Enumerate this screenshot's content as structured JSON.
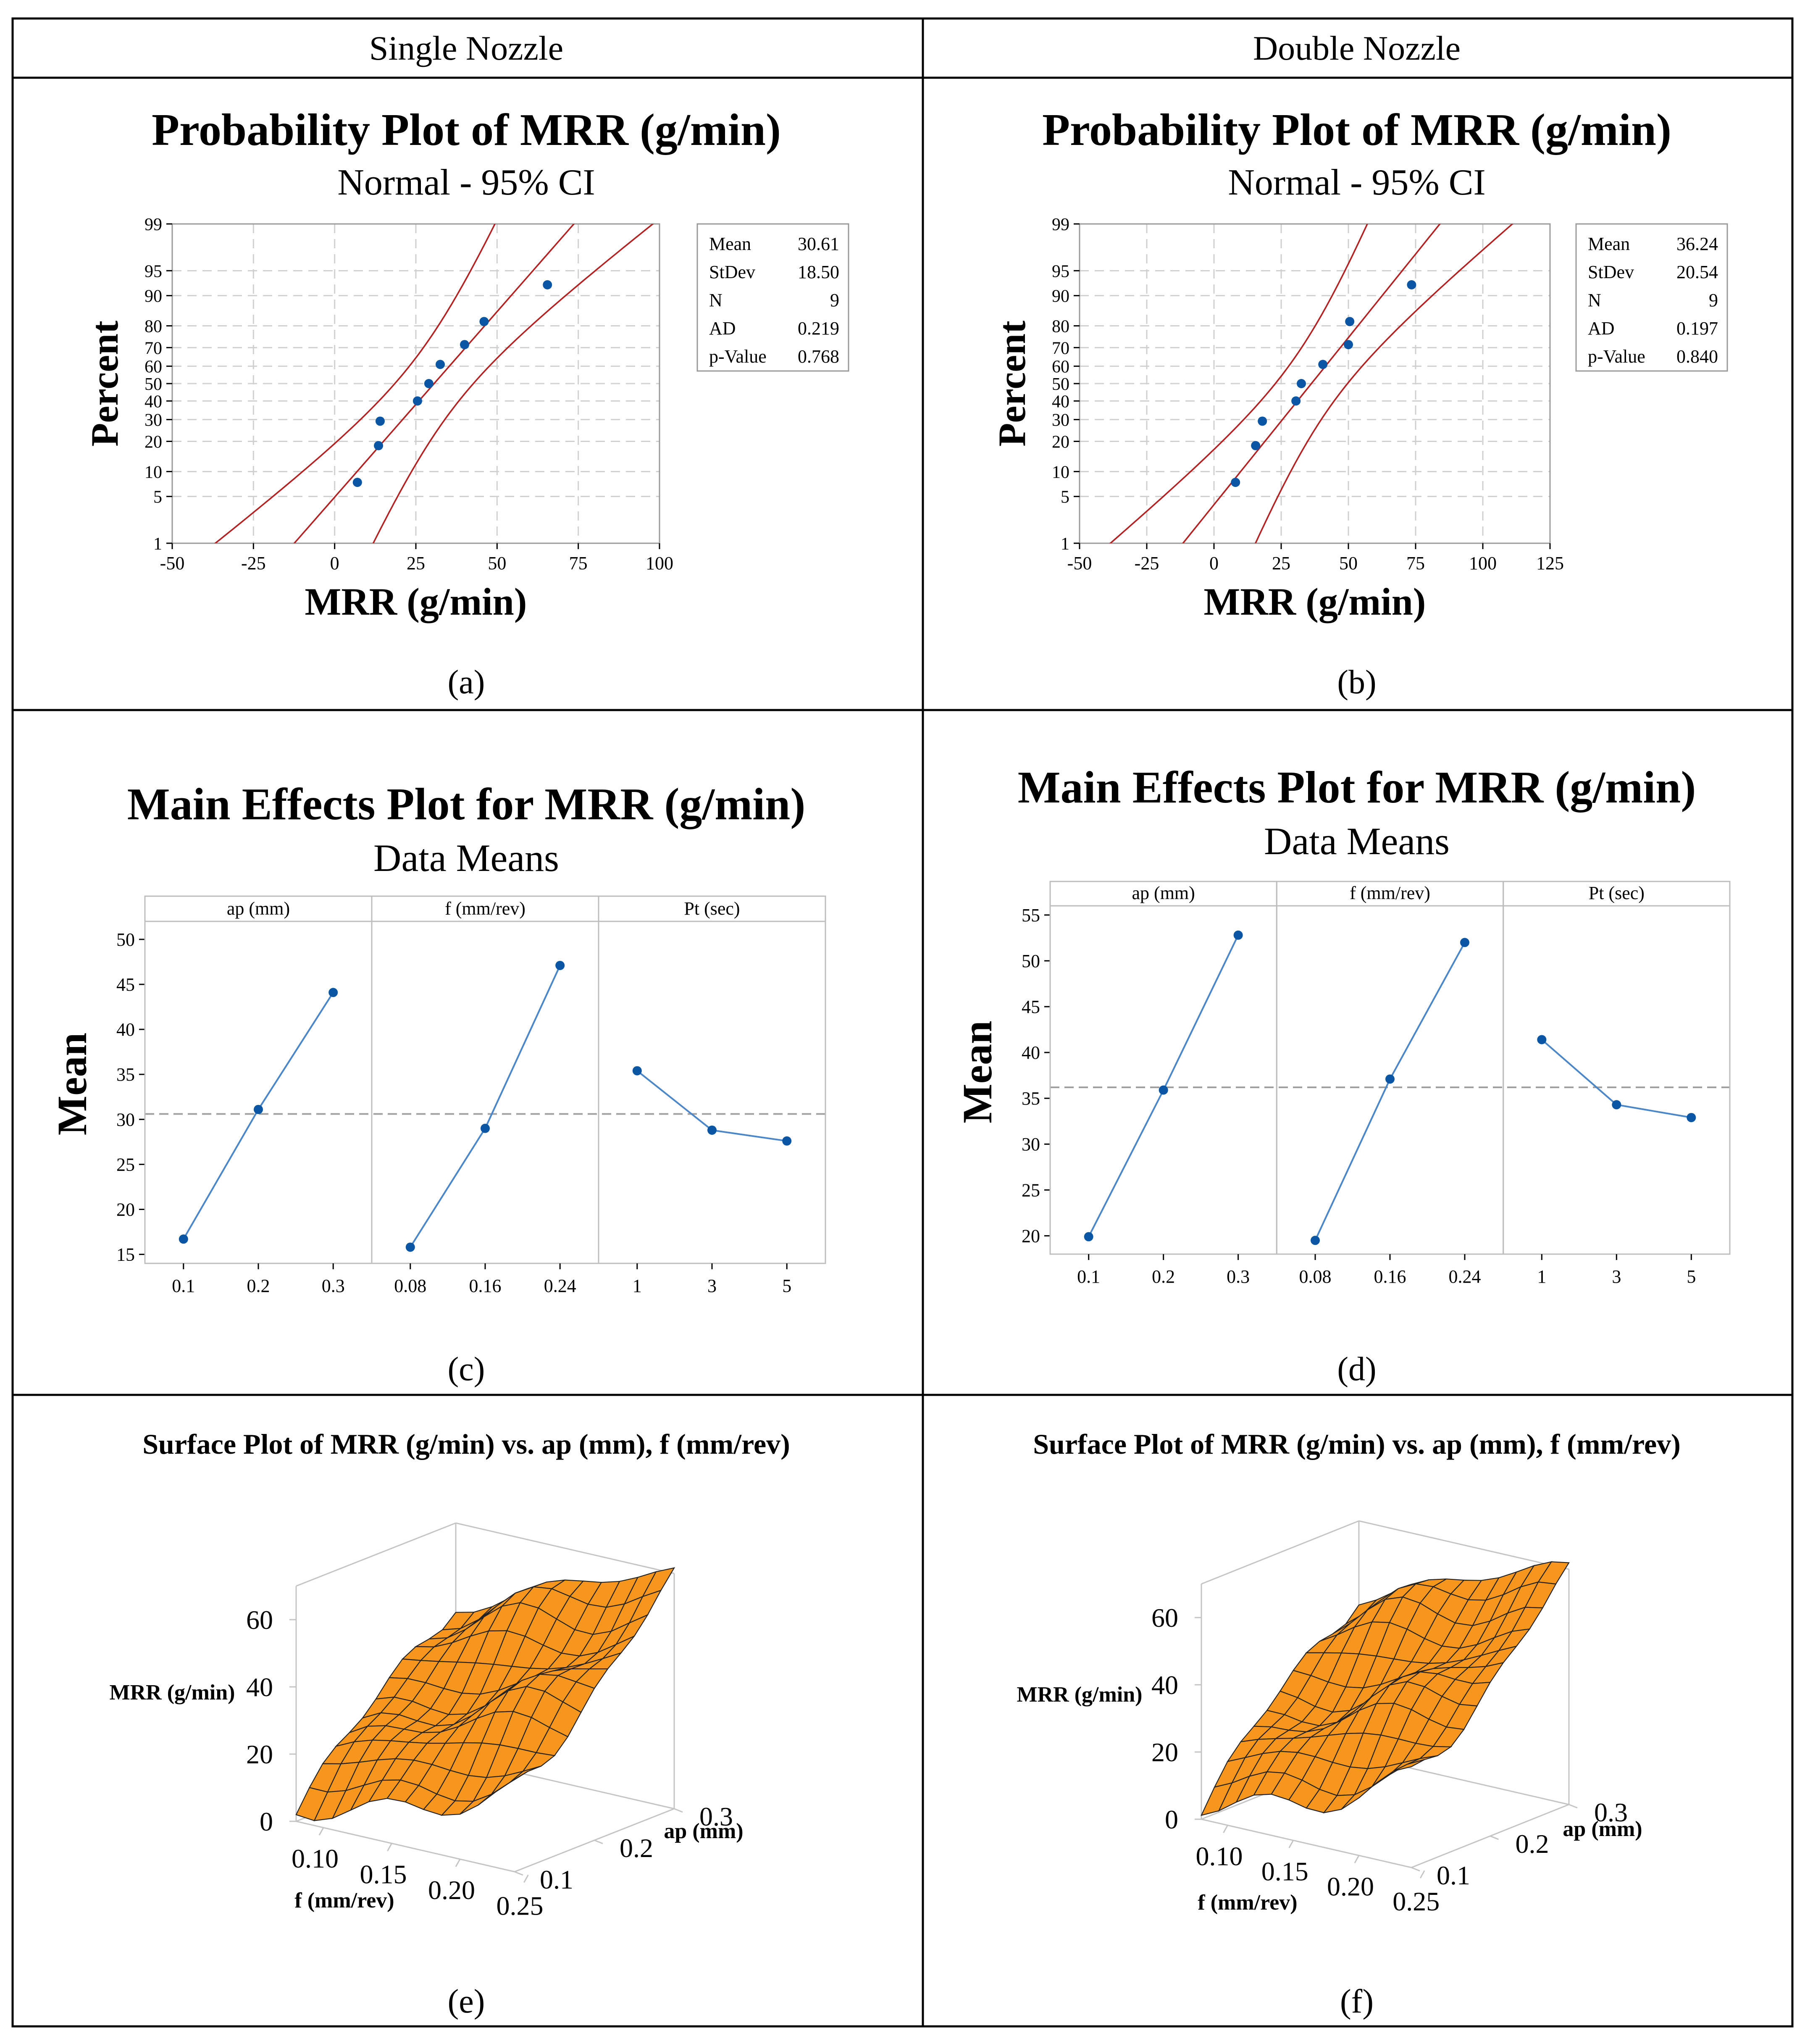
{
  "header": {
    "left": "Single Nozzle",
    "right": "Double Nozzle"
  },
  "captions": [
    "(a)",
    "(b)",
    "(c)",
    "(d)",
    "(e)",
    "(f)"
  ],
  "colors": {
    "line": "#000000",
    "grid": "#d0d0d0",
    "ci": "#b22222",
    "point": "#0b56a4",
    "effect": "#4a86c8",
    "surface": "#f7961d",
    "mesh": "#222222"
  },
  "chart_data": [
    {
      "type": "scatter",
      "subtype": "normal-probability",
      "title": "Probability Plot of MRR (g/min)",
      "subtitle": "Normal - 95% CI",
      "xlabel": "MRR (g/min)",
      "ylabel": "Percent",
      "xlim": [
        -50,
        100
      ],
      "xticks": [
        -50,
        -25,
        0,
        25,
        50,
        75,
        100
      ],
      "yticks": [
        1,
        5,
        10,
        20,
        30,
        40,
        50,
        60,
        70,
        80,
        90,
        95,
        99
      ],
      "points": [
        {
          "x": 7,
          "p": 7.5
        },
        {
          "x": 13.5,
          "p": 18.3
        },
        {
          "x": 14,
          "p": 29.2
        },
        {
          "x": 25.5,
          "p": 40
        },
        {
          "x": 29,
          "p": 50
        },
        {
          "x": 32.5,
          "p": 61
        },
        {
          "x": 40,
          "p": 71.5
        },
        {
          "x": 46,
          "p": 81.7
        },
        {
          "x": 65.5,
          "p": 92.5
        }
      ],
      "mean": 30.61,
      "sd": 18.5,
      "n": 9,
      "stats": [
        {
          "label": "Mean",
          "value": "30.61"
        },
        {
          "label": "StDev",
          "value": "18.50"
        },
        {
          "label": "N",
          "value": "9"
        },
        {
          "label": "AD",
          "value": "0.219"
        },
        {
          "label": "p-Value",
          "value": "0.768"
        }
      ]
    },
    {
      "type": "scatter",
      "subtype": "normal-probability",
      "title": "Probability Plot of MRR (g/min)",
      "subtitle": "Normal - 95% CI",
      "xlabel": "MRR (g/min)",
      "ylabel": "Percent",
      "xlim": [
        -50,
        125
      ],
      "xticks": [
        -50,
        -25,
        0,
        25,
        50,
        75,
        100,
        125
      ],
      "yticks": [
        1,
        5,
        10,
        20,
        30,
        40,
        50,
        60,
        70,
        80,
        90,
        95,
        99
      ],
      "points": [
        {
          "x": 8,
          "p": 7.5
        },
        {
          "x": 15.5,
          "p": 18.3
        },
        {
          "x": 18,
          "p": 29.2
        },
        {
          "x": 30.5,
          "p": 40
        },
        {
          "x": 32.5,
          "p": 50
        },
        {
          "x": 40.5,
          "p": 61
        },
        {
          "x": 50,
          "p": 71.5
        },
        {
          "x": 50.5,
          "p": 81.7
        },
        {
          "x": 73.5,
          "p": 92.5
        }
      ],
      "mean": 36.24,
      "sd": 20.54,
      "n": 9,
      "stats": [
        {
          "label": "Mean",
          "value": "36.24"
        },
        {
          "label": "StDev",
          "value": "20.54"
        },
        {
          "label": "N",
          "value": "9"
        },
        {
          "label": "AD",
          "value": "0.197"
        },
        {
          "label": "p-Value",
          "value": "0.840"
        }
      ]
    },
    {
      "type": "line",
      "subtype": "main-effects",
      "title": "Main Effects Plot for MRR (g/min)",
      "subtitle": "Data Means",
      "ylabel": "Mean",
      "ylim": [
        14,
        52
      ],
      "yticks": [
        15,
        20,
        25,
        30,
        35,
        40,
        45,
        50
      ],
      "overall_mean": 30.6,
      "factors": [
        {
          "name": "ap (mm)",
          "levels": [
            "0.1",
            "0.2",
            "0.3"
          ],
          "means": [
            16.7,
            31.1,
            44.1
          ]
        },
        {
          "name": "f (mm/rev)",
          "levels": [
            "0.08",
            "0.16",
            "0.24"
          ],
          "means": [
            15.8,
            29.0,
            47.1
          ]
        },
        {
          "name": "Pt (sec)",
          "levels": [
            "1",
            "3",
            "5"
          ],
          "means": [
            35.4,
            28.8,
            27.6
          ]
        }
      ]
    },
    {
      "type": "line",
      "subtype": "main-effects",
      "title": "Main Effects Plot for MRR (g/min)",
      "subtitle": "Data Means",
      "ylabel": "Mean",
      "ylim": [
        18,
        56
      ],
      "yticks": [
        20,
        25,
        30,
        35,
        40,
        45,
        50,
        55
      ],
      "overall_mean": 36.2,
      "factors": [
        {
          "name": "ap (mm)",
          "levels": [
            "0.1",
            "0.2",
            "0.3"
          ],
          "means": [
            19.9,
            35.9,
            52.8
          ]
        },
        {
          "name": "f (mm/rev)",
          "levels": [
            "0.08",
            "0.16",
            "0.24"
          ],
          "means": [
            19.5,
            37.1,
            52.0
          ]
        },
        {
          "name": "Pt (sec)",
          "levels": [
            "1",
            "3",
            "5"
          ],
          "means": [
            41.4,
            34.3,
            32.9
          ]
        }
      ]
    },
    {
      "type": "surface",
      "title": "Surface Plot of MRR (g/min) vs. ap (mm), f (mm/rev)",
      "xlabel": "f (mm/rev)",
      "ylabel": "ap (mm)",
      "zlabel": "MRR (g/min)",
      "xticks": [
        "0.10",
        "0.15",
        "0.20",
        "0.25"
      ],
      "yticks": [
        "0.1",
        "0.2",
        "0.3"
      ],
      "zticks": [
        "0",
        "20",
        "40",
        "60"
      ],
      "xrange": [
        0.08,
        0.24
      ],
      "yrange": [
        0.1,
        0.3
      ],
      "zrange": [
        0,
        70
      ],
      "grid": 12,
      "corner_values": {
        "f_low_ap_low": 5,
        "f_high_ap_low": 22,
        "f_low_ap_high": 48,
        "f_high_ap_high": 68
      }
    },
    {
      "type": "surface",
      "title": "Surface Plot of MRR (g/min) vs. ap (mm), f (mm/rev)",
      "xlabel": "f (mm/rev)",
      "ylabel": "ap (mm)",
      "zlabel": "MRR (g/min)",
      "xticks": [
        "0.10",
        "0.15",
        "0.20",
        "0.25"
      ],
      "yticks": [
        "0.1",
        "0.2",
        "0.3"
      ],
      "zticks": [
        "0",
        "20",
        "40",
        "60"
      ],
      "xrange": [
        0.08,
        0.24
      ],
      "yrange": [
        0.1,
        0.3
      ],
      "zrange": [
        0,
        70
      ],
      "grid": 12,
      "corner_values": {
        "f_low_ap_low": 5,
        "f_high_ap_low": 24,
        "f_low_ap_high": 50,
        "f_high_ap_high": 68
      }
    }
  ]
}
